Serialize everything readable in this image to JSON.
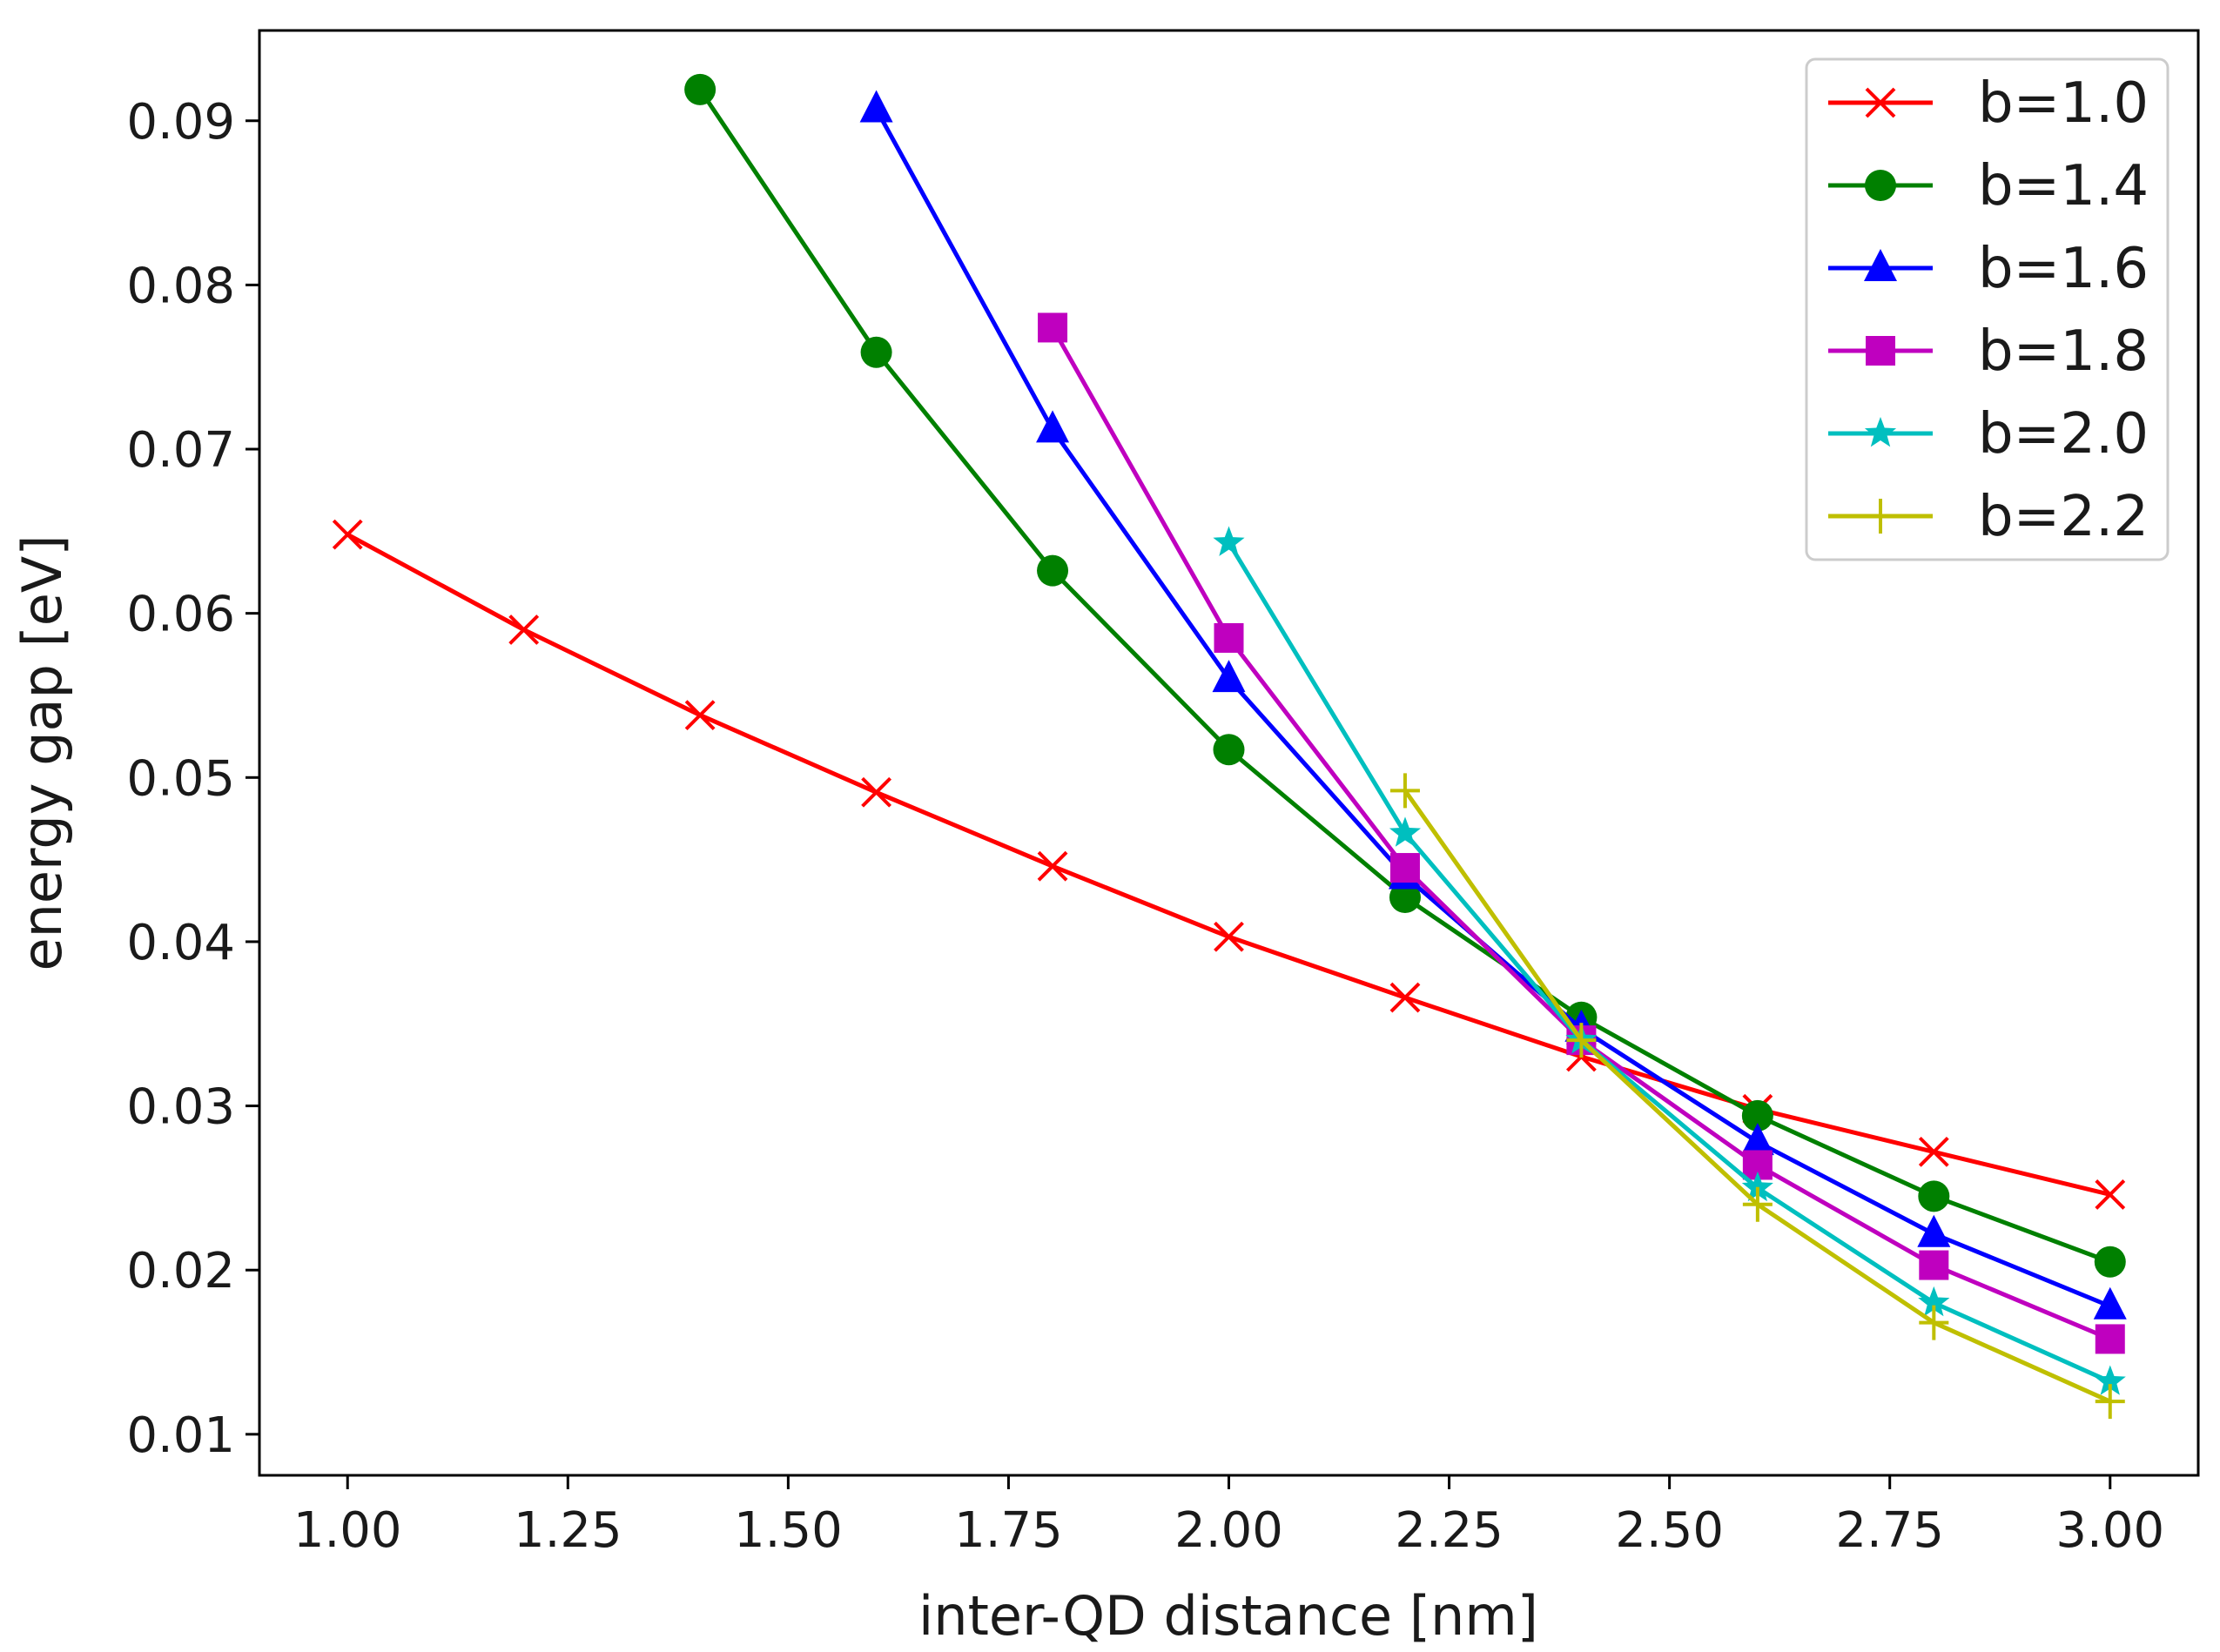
{
  "chart_data": {
    "type": "line",
    "title": "",
    "xlabel": "inter-QD distance [nm]",
    "ylabel": "energy gap [eV]",
    "xlim": [
      0.9,
      3.1
    ],
    "ylim": [
      0.0075,
      0.0955
    ],
    "xticks": [
      1.0,
      1.25,
      1.5,
      1.75,
      2.0,
      2.25,
      2.5,
      2.75,
      3.0
    ],
    "xtick_labels": [
      "1.00",
      "1.25",
      "1.50",
      "1.75",
      "2.00",
      "2.25",
      "2.50",
      "2.75",
      "3.00"
    ],
    "yticks": [
      0.01,
      0.02,
      0.03,
      0.04,
      0.05,
      0.06,
      0.07,
      0.08,
      0.09
    ],
    "ytick_labels": [
      "0.01",
      "0.02",
      "0.03",
      "0.04",
      "0.05",
      "0.06",
      "0.07",
      "0.08",
      "0.09"
    ],
    "grid": false,
    "legend_position": "top-right",
    "series": [
      {
        "name": "b=1.0",
        "color": "#ff0000",
        "marker": "x",
        "x": [
          1.0,
          1.2,
          1.4,
          1.6,
          1.8,
          2.0,
          2.2,
          2.4,
          2.6,
          2.8,
          3.0
        ],
        "values": [
          0.0648,
          0.059,
          0.0538,
          0.0491,
          0.0446,
          0.0403,
          0.0366,
          0.033,
          0.0298,
          0.0272,
          0.0246
        ]
      },
      {
        "name": "b=1.4",
        "color": "#008000",
        "marker": "circle",
        "x": [
          1.4,
          1.6,
          1.8,
          2.0,
          2.2,
          2.4,
          2.6,
          2.8,
          3.0
        ],
        "values": [
          0.0919,
          0.0759,
          0.0626,
          0.0517,
          0.0427,
          0.0354,
          0.0294,
          0.0245,
          0.0205
        ]
      },
      {
        "name": "b=1.6",
        "color": "#0000ff",
        "marker": "triangle",
        "x": [
          1.6,
          1.8,
          2.0,
          2.2,
          2.4,
          2.6,
          2.8,
          3.0
        ],
        "values": [
          0.0907,
          0.0712,
          0.056,
          0.044,
          0.0347,
          0.0278,
          0.0222,
          0.0178
        ]
      },
      {
        "name": "b=1.8",
        "color": "#bf00bf",
        "marker": "square",
        "x": [
          1.8,
          2.0,
          2.2,
          2.4,
          2.6,
          2.8,
          3.0
        ],
        "values": [
          0.0774,
          0.0585,
          0.0445,
          0.034,
          0.0264,
          0.0203,
          0.0158
        ]
      },
      {
        "name": "b=2.0",
        "color": "#00bfbf",
        "marker": "star",
        "x": [
          2.0,
          2.2,
          2.4,
          2.6,
          2.8,
          3.0
        ],
        "values": [
          0.0643,
          0.0466,
          0.034,
          0.025,
          0.018,
          0.0132
        ]
      },
      {
        "name": "b=2.2",
        "color": "#bfbf00",
        "marker": "plus",
        "x": [
          2.2,
          2.4,
          2.6,
          2.8,
          3.0
        ],
        "values": [
          0.0492,
          0.034,
          0.024,
          0.0168,
          0.012
        ]
      }
    ]
  }
}
